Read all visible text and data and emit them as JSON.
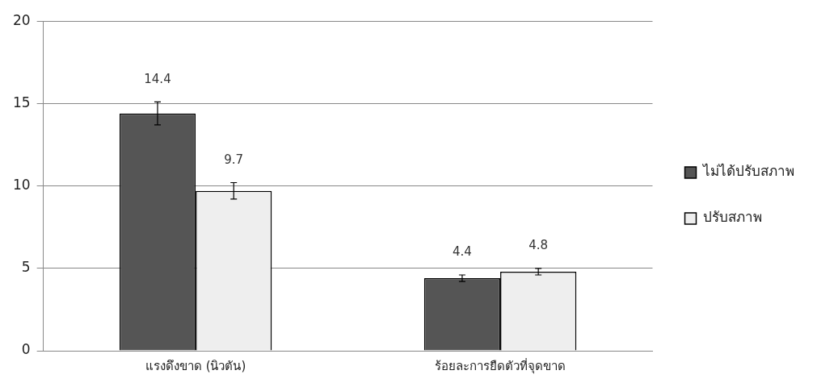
{
  "chart_data": {
    "type": "bar",
    "categories": [
      "แรงดึงขาด (นิวตัน)",
      "ร้อยละการยืดตัวที่จุดขาด"
    ],
    "series": [
      {
        "name": "ไม่ได้ปรับสภาพ",
        "color": "#555555",
        "values": [
          14.4,
          4.4
        ],
        "errors": [
          0.7,
          0.2
        ]
      },
      {
        "name": "ปรับสภาพ",
        "color": "#eeeeee",
        "values": [
          9.7,
          4.8
        ],
        "errors": [
          0.5,
          0.2
        ]
      }
    ],
    "ylim": [
      0,
      20
    ],
    "yticks": [
      0,
      5,
      10,
      15,
      20
    ],
    "grid": "y",
    "legend": "right",
    "data_labels": true
  }
}
